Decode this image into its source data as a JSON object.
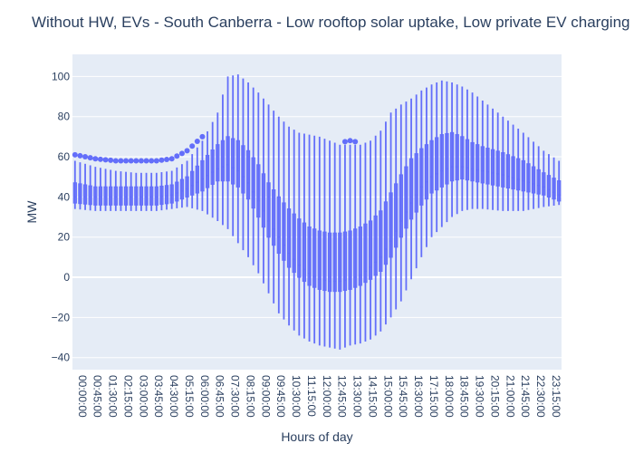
{
  "chart_data": {
    "type": "box",
    "title": "Without HW, EVs - South Canberra - Low rooftop solar uptake, Low private EV charging",
    "xlabel": "Hours of day",
    "ylabel": "MW",
    "ylim": [
      -46,
      111
    ],
    "yticks": [
      -40,
      -20,
      0,
      20,
      40,
      60,
      80,
      100
    ],
    "grid": true,
    "legend": "none",
    "colors": {
      "box": "#636efa",
      "plot_bg": "#e5ecf6",
      "grid": "#ffffff",
      "text": "#2a3f5f"
    },
    "x_tick_labels": [
      "00:00:00",
      "00:45:00",
      "01:30:00",
      "02:15:00",
      "03:00:00",
      "03:45:00",
      "04:30:00",
      "05:15:00",
      "06:00:00",
      "06:45:00",
      "07:30:00",
      "08:15:00",
      "09:00:00",
      "09:45:00",
      "10:30:00",
      "11:15:00",
      "12:00:00",
      "12:45:00",
      "13:30:00",
      "14:15:00",
      "15:00:00",
      "15:45:00",
      "16:30:00",
      "17:15:00",
      "18:00:00",
      "18:45:00",
      "19:30:00",
      "20:15:00",
      "21:00:00",
      "21:45:00",
      "22:30:00",
      "23:15:00"
    ],
    "interval_minutes": 15,
    "keypoints": {
      "times": [
        "00:00",
        "01:00",
        "02:00",
        "03:00",
        "04:00",
        "04:45",
        "05:30",
        "06:15",
        "07:00",
        "07:30",
        "08:00",
        "08:30",
        "09:00",
        "09:30",
        "10:00",
        "10:30",
        "11:00",
        "11:30",
        "12:00",
        "12:30",
        "13:00",
        "13:30",
        "14:00",
        "14:30",
        "15:00",
        "15:30",
        "16:00",
        "16:30",
        "17:00",
        "17:30",
        "18:00",
        "18:30",
        "19:00",
        "19:30",
        "20:00",
        "21:00",
        "22:00",
        "23:00",
        "23:45"
      ],
      "max": [
        58,
        55,
        53,
        52,
        52,
        53,
        58,
        68,
        82,
        100,
        101,
        97,
        92,
        86,
        80,
        75,
        72,
        71,
        70,
        68,
        66,
        66,
        66,
        68,
        73,
        82,
        86,
        89,
        93,
        96,
        98,
        97,
        95,
        92,
        88,
        80,
        72,
        63,
        58
      ],
      "q3": [
        47,
        45,
        45,
        45,
        45,
        46,
        50,
        58,
        66,
        70,
        68,
        63,
        56,
        47,
        40,
        34,
        29,
        25,
        23,
        22,
        22,
        23,
        25,
        28,
        33,
        42,
        51,
        59,
        64,
        68,
        71,
        72,
        70,
        67,
        65,
        62,
        58,
        52,
        48
      ],
      "median": [
        40,
        40,
        40,
        40,
        40,
        41,
        44,
        49,
        54,
        56,
        53,
        47,
        38,
        28,
        20,
        12,
        6,
        2,
        -1,
        -2,
        -2,
        -1,
        1,
        5,
        10,
        18,
        28,
        37,
        45,
        50,
        53,
        55,
        55,
        54,
        53,
        51,
        48,
        45,
        41
      ],
      "q1": [
        37,
        36,
        36,
        36,
        36,
        37,
        40,
        43,
        48,
        48,
        45,
        39,
        30,
        20,
        12,
        5,
        0,
        -4,
        -6,
        -7,
        -7,
        -6,
        -4,
        -1,
        3,
        10,
        20,
        29,
        36,
        42,
        45,
        48,
        49,
        48,
        47,
        45,
        43,
        41,
        38
      ],
      "min": [
        34,
        33,
        33,
        33,
        33,
        34,
        35,
        33,
        28,
        24,
        17,
        10,
        2,
        -8,
        -18,
        -24,
        -29,
        -32,
        -34,
        -35,
        -36,
        -34,
        -33,
        -31,
        -27,
        -20,
        -12,
        -1,
        10,
        20,
        25,
        30,
        33,
        34,
        34,
        33,
        33,
        35,
        36
      ],
      "outlier_top": [
        61,
        59,
        58,
        58,
        58,
        59,
        63,
        70,
        80,
        99,
        null,
        null,
        null,
        null,
        null,
        null,
        null,
        null,
        null,
        68,
        67,
        68,
        67,
        68,
        73,
        null,
        null,
        null,
        null,
        null,
        null,
        null,
        null,
        null,
        null,
        null,
        null,
        null,
        null
      ]
    }
  }
}
